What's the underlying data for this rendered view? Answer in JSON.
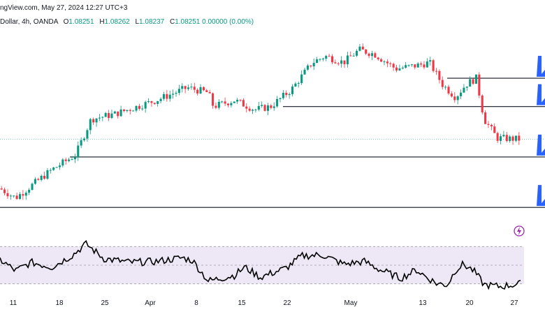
{
  "header": {
    "line1": "ngView.com, May 27, 2024 12:27 UTC+3",
    "line2_prefix": "Dollar, 4h, OANDA",
    "open_label": "O",
    "open": "1.08251",
    "high_label": "H",
    "high": "1.08262",
    "low_label": "L",
    "low": "1.08237",
    "close_label": "C",
    "close": "1.08251",
    "change": "0.00000 (0.00%)"
  },
  "colors": {
    "up": "#089981",
    "down": "#f23645",
    "level_line": "#131722",
    "arrow": "#2962ff",
    "rsi_line": "#000000",
    "rsi_band": "#ede7f6",
    "rsi_guides": "#9e9e9e",
    "flash": "#9c27b0"
  },
  "chart_data": [
    {
      "type": "candlestick",
      "timeframe": "4h",
      "level_lines": [
        1.1,
        1.0955,
        1.0875,
        1.0795
      ],
      "note_levels": "horizontal support/resistance lines drawn on chart",
      "x_ticks": [
        "11",
        "18",
        "25",
        "Apr",
        "8",
        "15",
        "22",
        "May",
        "13",
        "20",
        "27"
      ],
      "path_anchors": [
        {
          "x": 0,
          "y": 1.0825
        },
        {
          "x": 0.03,
          "y": 1.081
        },
        {
          "x": 0.1,
          "y": 1.0855
        },
        {
          "x": 0.145,
          "y": 1.0878
        },
        {
          "x": 0.175,
          "y": 1.0935
        },
        {
          "x": 0.22,
          "y": 1.0943
        },
        {
          "x": 0.3,
          "y": 1.0965
        },
        {
          "x": 0.36,
          "y": 1.0985
        },
        {
          "x": 0.4,
          "y": 1.0977
        },
        {
          "x": 0.41,
          "y": 1.0955
        },
        {
          "x": 0.45,
          "y": 1.0965
        },
        {
          "x": 0.49,
          "y": 1.095
        },
        {
          "x": 0.52,
          "y": 1.0955
        },
        {
          "x": 0.56,
          "y": 1.0982
        },
        {
          "x": 0.6,
          "y": 1.1025
        },
        {
          "x": 0.625,
          "y": 1.1035
        },
        {
          "x": 0.66,
          "y": 1.1025
        },
        {
          "x": 0.69,
          "y": 1.1045
        },
        {
          "x": 0.72,
          "y": 1.1038
        },
        {
          "x": 0.76,
          "y": 1.1015
        },
        {
          "x": 0.8,
          "y": 1.102
        },
        {
          "x": 0.825,
          "y": 1.1025
        },
        {
          "x": 0.85,
          "y": 1.099
        },
        {
          "x": 0.875,
          "y": 1.097
        },
        {
          "x": 0.895,
          "y": 1.099
        },
        {
          "x": 0.915,
          "y": 1.1
        },
        {
          "x": 0.93,
          "y": 1.0935
        },
        {
          "x": 0.955,
          "y": 1.0905
        },
        {
          "x": 1.0,
          "y": 1.0903
        }
      ],
      "y_range": [
        1.0783,
        1.1082
      ]
    },
    {
      "type": "line",
      "indicator": "RSI",
      "y_range": [
        20,
        80
      ],
      "guides": [
        70,
        50,
        30
      ],
      "points": [
        {
          "x": 0.0,
          "y": 56
        },
        {
          "x": 0.03,
          "y": 44
        },
        {
          "x": 0.06,
          "y": 53
        },
        {
          "x": 0.1,
          "y": 48
        },
        {
          "x": 0.14,
          "y": 61
        },
        {
          "x": 0.165,
          "y": 73
        },
        {
          "x": 0.2,
          "y": 57
        },
        {
          "x": 0.25,
          "y": 53
        },
        {
          "x": 0.3,
          "y": 54
        },
        {
          "x": 0.35,
          "y": 58
        },
        {
          "x": 0.37,
          "y": 55
        },
        {
          "x": 0.4,
          "y": 33
        },
        {
          "x": 0.45,
          "y": 39
        },
        {
          "x": 0.47,
          "y": 48
        },
        {
          "x": 0.5,
          "y": 37
        },
        {
          "x": 0.55,
          "y": 47
        },
        {
          "x": 0.58,
          "y": 60
        },
        {
          "x": 0.62,
          "y": 61
        },
        {
          "x": 0.66,
          "y": 51
        },
        {
          "x": 0.7,
          "y": 54
        },
        {
          "x": 0.73,
          "y": 45
        },
        {
          "x": 0.77,
          "y": 36
        },
        {
          "x": 0.8,
          "y": 45
        },
        {
          "x": 0.82,
          "y": 37
        },
        {
          "x": 0.84,
          "y": 30
        },
        {
          "x": 0.86,
          "y": 29
        },
        {
          "x": 0.875,
          "y": 45
        },
        {
          "x": 0.89,
          "y": 51
        },
        {
          "x": 0.91,
          "y": 44
        },
        {
          "x": 0.93,
          "y": 29
        },
        {
          "x": 0.96,
          "y": 27
        },
        {
          "x": 1.0,
          "y": 30
        }
      ]
    }
  ]
}
